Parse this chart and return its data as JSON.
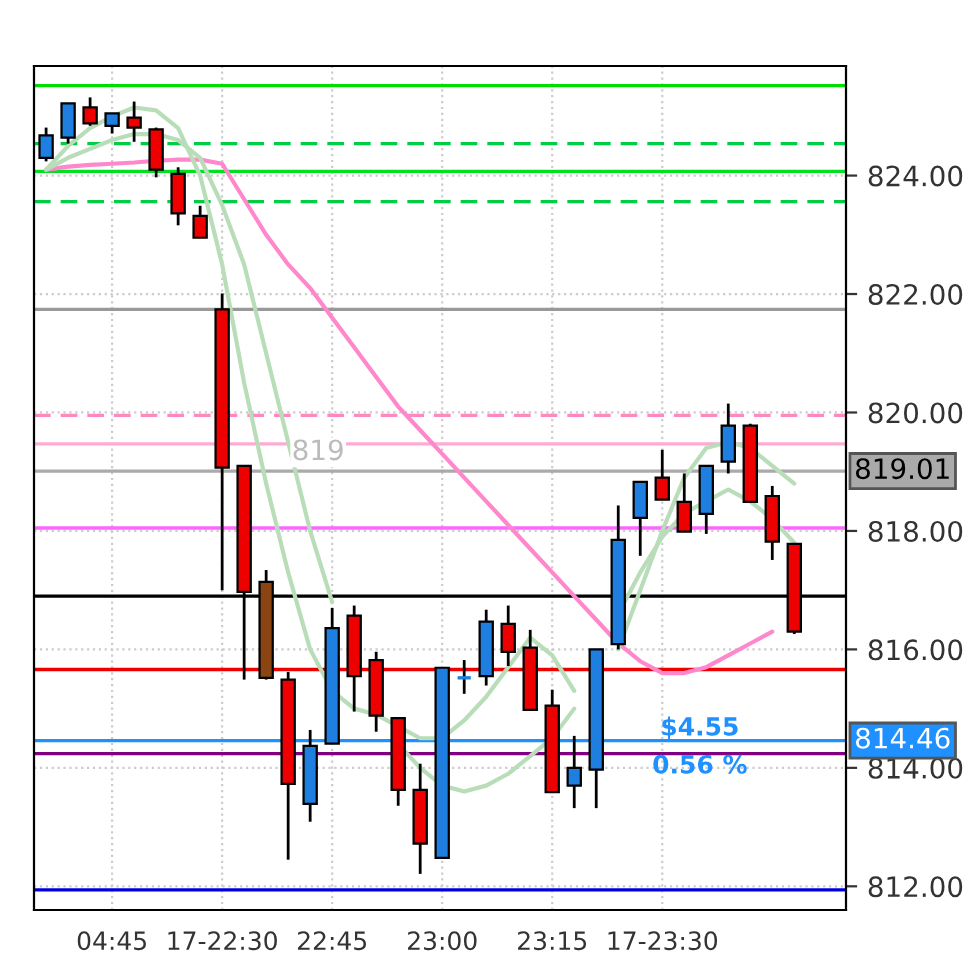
{
  "chart_data": {
    "type": "candlestick",
    "categories": [
      null,
      null,
      null,
      "04:45",
      null,
      null,
      null,
      null,
      "17-22:30",
      null,
      null,
      null,
      null,
      "22:45",
      null,
      null,
      null,
      null,
      "23:00",
      null,
      null,
      null,
      null,
      "23:15",
      null,
      null,
      null,
      null,
      "17-23:30",
      null,
      null,
      null,
      null,
      null,
      null
    ],
    "ohlc": [
      [
        824.3,
        824.81,
        824.24,
        824.68
      ],
      [
        824.64,
        825.22,
        824.54,
        825.22
      ],
      [
        825.15,
        825.32,
        824.84,
        824.88
      ],
      [
        824.84,
        825.05,
        824.71,
        825.05
      ],
      [
        824.98,
        825.25,
        824.57,
        824.81
      ],
      [
        824.78,
        824.81,
        823.97,
        824.1
      ],
      [
        824.03,
        824.14,
        823.16,
        823.36
      ],
      [
        823.32,
        823.49,
        822.95,
        822.95
      ],
      [
        821.74,
        822.01,
        817.0,
        819.07
      ],
      [
        819.1,
        819.1,
        815.49,
        816.97
      ],
      [
        817.14,
        817.34,
        815.49,
        815.52
      ],
      [
        815.49,
        815.62,
        812.45,
        813.73
      ],
      [
        813.39,
        814.64,
        813.09,
        814.37
      ],
      [
        814.41,
        816.7,
        814.41,
        816.36
      ],
      [
        816.57,
        816.74,
        814.95,
        815.55
      ],
      [
        815.82,
        815.96,
        814.61,
        814.88
      ],
      [
        814.84,
        814.84,
        813.36,
        813.63
      ],
      [
        813.63,
        814.07,
        812.21,
        812.72
      ],
      [
        812.48,
        815.69,
        812.48,
        815.69
      ],
      [
        815.52,
        815.82,
        815.25,
        815.52
      ],
      [
        815.55,
        816.67,
        815.39,
        816.47
      ],
      [
        816.43,
        816.74,
        815.72,
        815.96
      ],
      [
        816.03,
        816.33,
        814.98,
        814.98
      ],
      [
        815.05,
        815.32,
        813.59,
        813.59
      ],
      [
        813.7,
        814.54,
        813.32,
        814.0
      ],
      [
        813.97,
        816.0,
        813.32,
        816.0
      ],
      [
        816.09,
        818.43,
        816.0,
        817.85
      ],
      [
        818.22,
        818.83,
        817.58,
        818.83
      ],
      [
        818.9,
        819.37,
        818.53,
        818.53
      ],
      [
        818.49,
        818.97,
        817.99,
        817.99
      ],
      [
        818.29,
        819.1,
        817.95,
        819.1
      ],
      [
        819.17,
        820.15,
        818.97,
        819.78
      ],
      [
        819.78,
        819.81,
        818.49,
        818.49
      ],
      [
        818.59,
        818.76,
        817.51,
        817.82
      ],
      [
        817.78,
        817.78,
        816.26,
        816.3
      ]
    ],
    "colors": [
      "#1e7fe0",
      "#1e7fe0",
      "#ee0000",
      "#1e7fe0",
      "#ee0000",
      "#ee0000",
      "#ee0000",
      "#ee0000",
      "#ee0000",
      "#ee0000",
      "#8b4513",
      "#ee0000",
      "#1e7fe0",
      "#1e7fe0",
      "#ee0000",
      "#ee0000",
      "#ee0000",
      "#ee0000",
      "#1e7fe0",
      "#1e7fe0",
      "#1e7fe0",
      "#ee0000",
      "#ee0000",
      "#ee0000",
      "#1e7fe0",
      "#1e7fe0",
      "#1e7fe0",
      "#1e7fe0",
      "#ee0000",
      "#ee0000",
      "#1e7fe0",
      "#1e7fe0",
      "#ee0000",
      "#ee0000",
      "#ee0000"
    ],
    "series": [
      {
        "type": "line",
        "color": "#ff88cc",
        "values": [
          824.1,
          824.15,
          824.18,
          824.2,
          824.22,
          824.25,
          824.27,
          824.27,
          824.2,
          823.6,
          823.0,
          822.5,
          822.1,
          821.6,
          821.1,
          820.6,
          820.1,
          819.7,
          819.3,
          818.9,
          818.5,
          818.1,
          817.7,
          817.3,
          816.9,
          816.5,
          816.1,
          815.8,
          815.6,
          815.6,
          815.7,
          815.9,
          816.1,
          816.3,
          null
        ]
      },
      {
        "type": "line",
        "color": "#b8ddb8",
        "values": [
          824.1,
          824.5,
          824.8,
          825.0,
          825.15,
          825.1,
          824.8,
          824.0,
          822.5,
          820.5,
          818.8,
          817.3,
          816.0,
          815.3,
          815.0,
          814.9,
          814.7,
          814.5,
          814.5,
          814.8,
          815.2,
          815.7,
          816.2,
          815.9,
          815.3,
          null,
          816.0,
          817.0,
          818.0,
          818.9,
          819.4,
          819.5,
          819.4,
          819.1,
          818.8
        ]
      },
      {
        "type": "line",
        "color": "#b8ddb8",
        "values": [
          824.1,
          824.3,
          824.45,
          824.6,
          824.7,
          824.7,
          824.6,
          824.3,
          823.5,
          822.5,
          821.0,
          819.5,
          818.0,
          816.8,
          null,
          null,
          814.4,
          814.0,
          813.7,
          813.6,
          813.7,
          813.9,
          814.2,
          814.5,
          815.0,
          null,
          816.6,
          817.3,
          817.9,
          818.3,
          818.5,
          818.7,
          818.5,
          818.2,
          817.8
        ]
      }
    ],
    "ref_lines": [
      {
        "axis": "y",
        "value": 825.52,
        "color": "#00dd00",
        "line_style": "solid"
      },
      {
        "axis": "y",
        "value": 824.54,
        "color": "#00cc44",
        "line_style": "dashed"
      },
      {
        "axis": "y",
        "value": 824.07,
        "color": "#00e020",
        "line_style": "solid"
      },
      {
        "axis": "y",
        "value": 823.56,
        "color": "#00cc44",
        "line_style": "dashed"
      },
      {
        "axis": "y",
        "value": 821.74,
        "color": "#999999",
        "line_style": "solid"
      },
      {
        "axis": "y",
        "value": 819.95,
        "color": "#ff88c0",
        "line_style": "dashed"
      },
      {
        "axis": "y",
        "value": 819.47,
        "color": "#ffaad4",
        "line_style": "solid"
      },
      {
        "axis": "y",
        "value": 819.01,
        "color": "#aaaaaa",
        "line_style": "solid",
        "label": "819.01"
      },
      {
        "axis": "y",
        "value": 818.05,
        "color": "#ff66ff",
        "line_style": "solid"
      },
      {
        "axis": "y",
        "value": 816.9,
        "color": "#000000",
        "line_style": "solid"
      },
      {
        "axis": "y",
        "value": 815.66,
        "color": "#ee0000",
        "line_style": "solid"
      },
      {
        "axis": "y",
        "value": 814.46,
        "color": "#1e90ff",
        "line_style": "solid",
        "label": "814.46"
      },
      {
        "axis": "y",
        "value": 814.24,
        "color": "#800080",
        "line_style": "solid"
      },
      {
        "axis": "y",
        "value": 811.94,
        "color": "#0000dd",
        "line_style": "solid"
      }
    ],
    "annotations": [
      {
        "text": "819",
        "y": 819.1
      },
      "$4.55",
      "0.56 %"
    ],
    "ylim": [
      811.6,
      825.85
    ],
    "yticks": [
      {
        "value": 812,
        "label": "812.00"
      },
      {
        "value": 814,
        "label": "814.00"
      },
      {
        "value": 816,
        "label": "816.00"
      },
      {
        "value": 818,
        "label": "818.00"
      },
      {
        "value": 820,
        "label": "820.00"
      },
      {
        "value": 822,
        "label": "822.00"
      },
      {
        "value": 824,
        "label": "824.00"
      }
    ],
    "grid": true
  }
}
